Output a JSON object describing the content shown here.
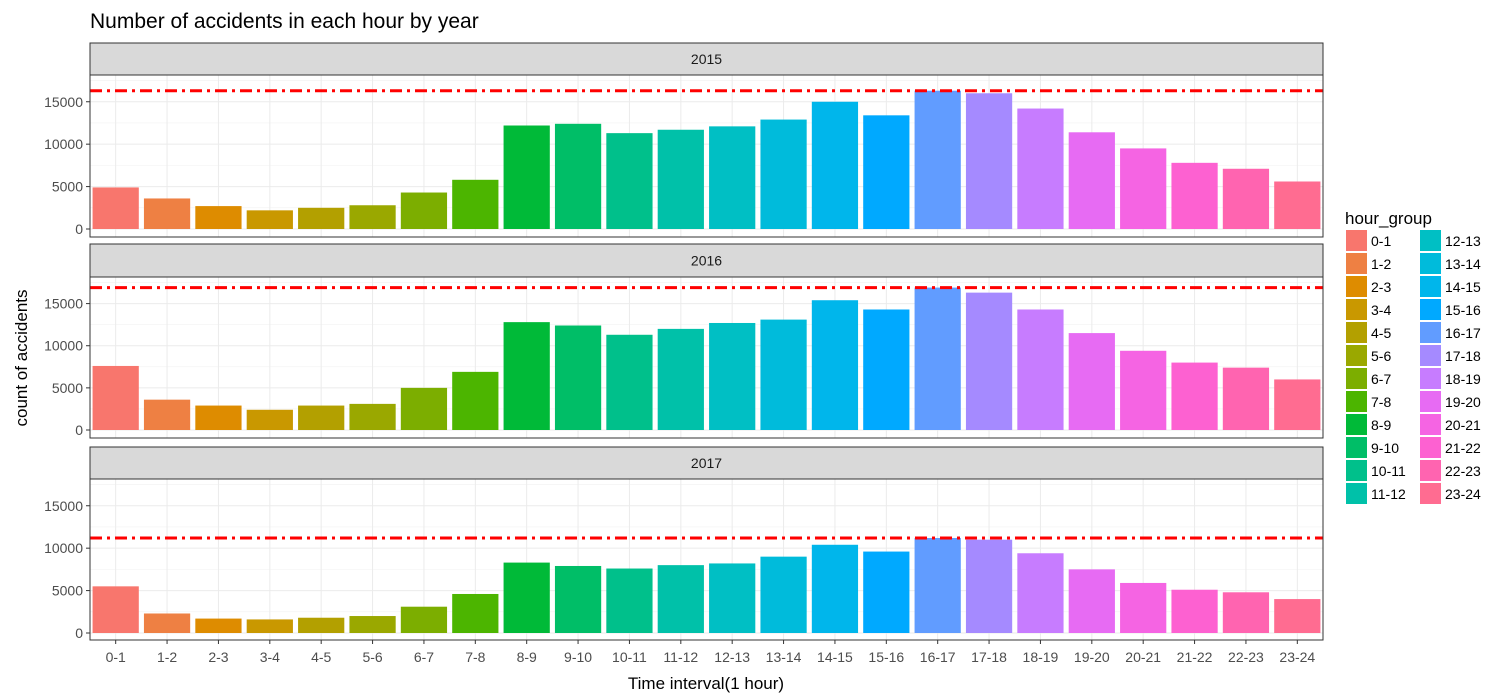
{
  "chart_data": {
    "type": "bar",
    "title": "Number of accidents in each hour by year",
    "xlabel": "Time interval(1 hour)",
    "ylabel": "count of accidents",
    "ylim": [
      0,
      17800
    ],
    "yticks": [
      0,
      5000,
      10000,
      15000
    ],
    "grid": true,
    "legend": {
      "title": "hour_group",
      "placement": "right",
      "columns": 2
    },
    "categories": [
      "0-1",
      "1-2",
      "2-3",
      "3-4",
      "4-5",
      "5-6",
      "6-7",
      "7-8",
      "8-9",
      "9-10",
      "10-11",
      "11-12",
      "12-13",
      "13-14",
      "14-15",
      "15-16",
      "16-17",
      "17-18",
      "18-19",
      "19-20",
      "20-21",
      "21-22",
      "22-23",
      "23-24"
    ],
    "colors": [
      "#F8766D",
      "#EE8043",
      "#DE8C00",
      "#C99800",
      "#B3A000",
      "#9AA800",
      "#7CAE00",
      "#4CB500",
      "#00BA38",
      "#00BE67",
      "#00C08B",
      "#00C1A9",
      "#00BFC4",
      "#00BBDB",
      "#00B6EB",
      "#00A9FF",
      "#619CFF",
      "#A58AFF",
      "#C77CFF",
      "#E76BF3",
      "#F564E3",
      "#FD61D1",
      "#FF64B0",
      "#FF6C91"
    ],
    "facets": [
      {
        "label": "2015",
        "max_line": 16300,
        "values": [
          4900,
          3600,
          2700,
          2200,
          2500,
          2800,
          4300,
          5800,
          12200,
          12400,
          11300,
          11700,
          12100,
          12900,
          15000,
          13400,
          16300,
          16000,
          14200,
          11400,
          9500,
          7800,
          7100,
          5600
        ]
      },
      {
        "label": "2016",
        "max_line": 16900,
        "values": [
          7600,
          3600,
          2900,
          2400,
          2900,
          3100,
          5000,
          6900,
          12800,
          12400,
          11300,
          12000,
          12700,
          13100,
          15400,
          14300,
          16900,
          16300,
          14300,
          11500,
          9400,
          8000,
          7400,
          6000
        ]
      },
      {
        "label": "2017",
        "max_line": 11200,
        "values": [
          5500,
          2300,
          1700,
          1600,
          1800,
          2000,
          3100,
          4600,
          8300,
          7900,
          7600,
          8000,
          8200,
          9000,
          10400,
          9600,
          11200,
          11000,
          9400,
          7500,
          5900,
          5100,
          4800,
          4000
        ]
      }
    ]
  }
}
